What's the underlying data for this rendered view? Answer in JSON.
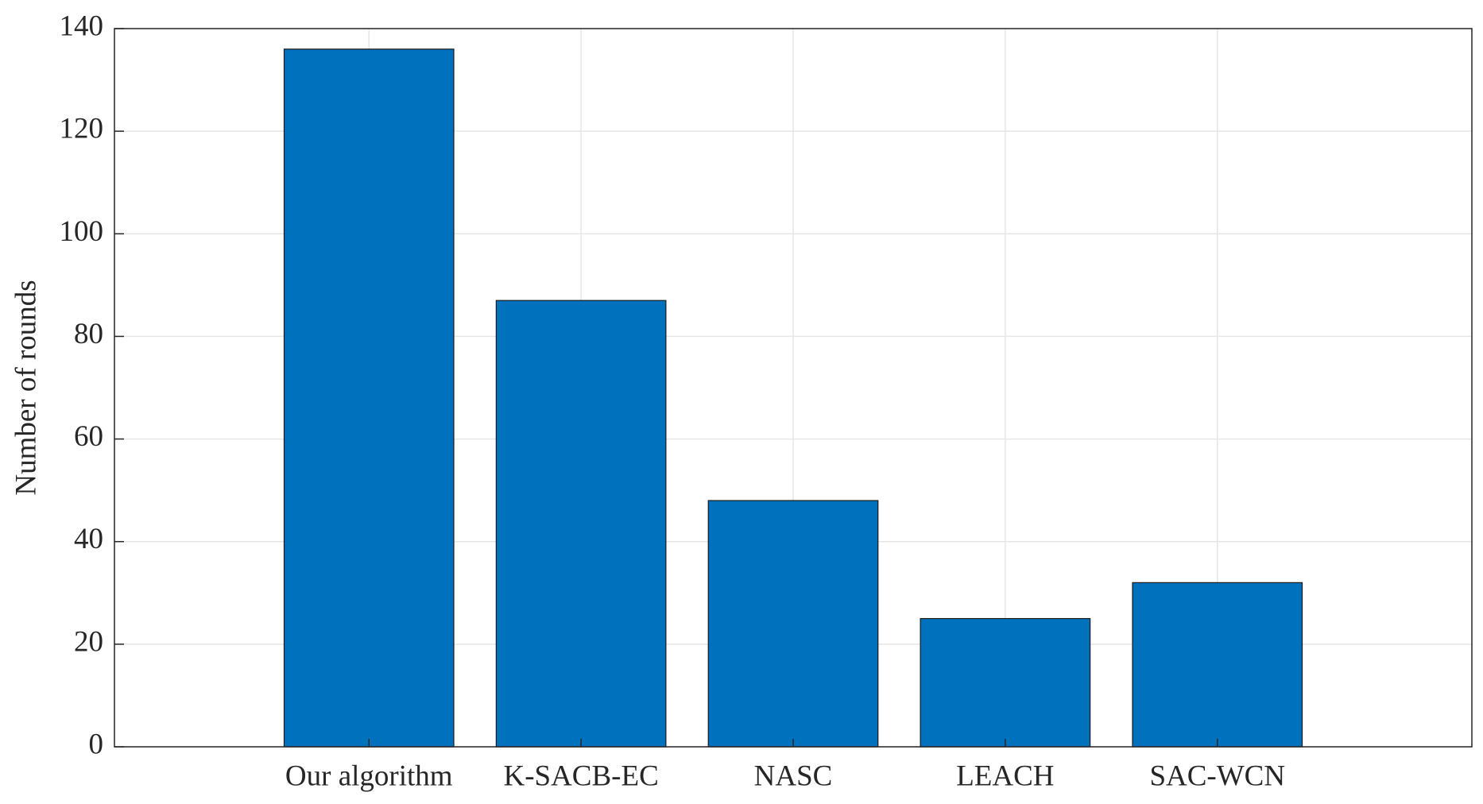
{
  "chart_data": {
    "type": "bar",
    "y_label": "Number of rounds",
    "categories": [
      "Our algorithm",
      "K-SACB-EC",
      "NASC",
      "LEACH",
      "SAC-WCN"
    ],
    "values": [
      136,
      87,
      48,
      25,
      32
    ],
    "color": "#0072bd",
    "ylim": [
      0,
      140
    ],
    "yticks": [
      0,
      20,
      40,
      60,
      80,
      100,
      120,
      140
    ],
    "grid": true
  }
}
